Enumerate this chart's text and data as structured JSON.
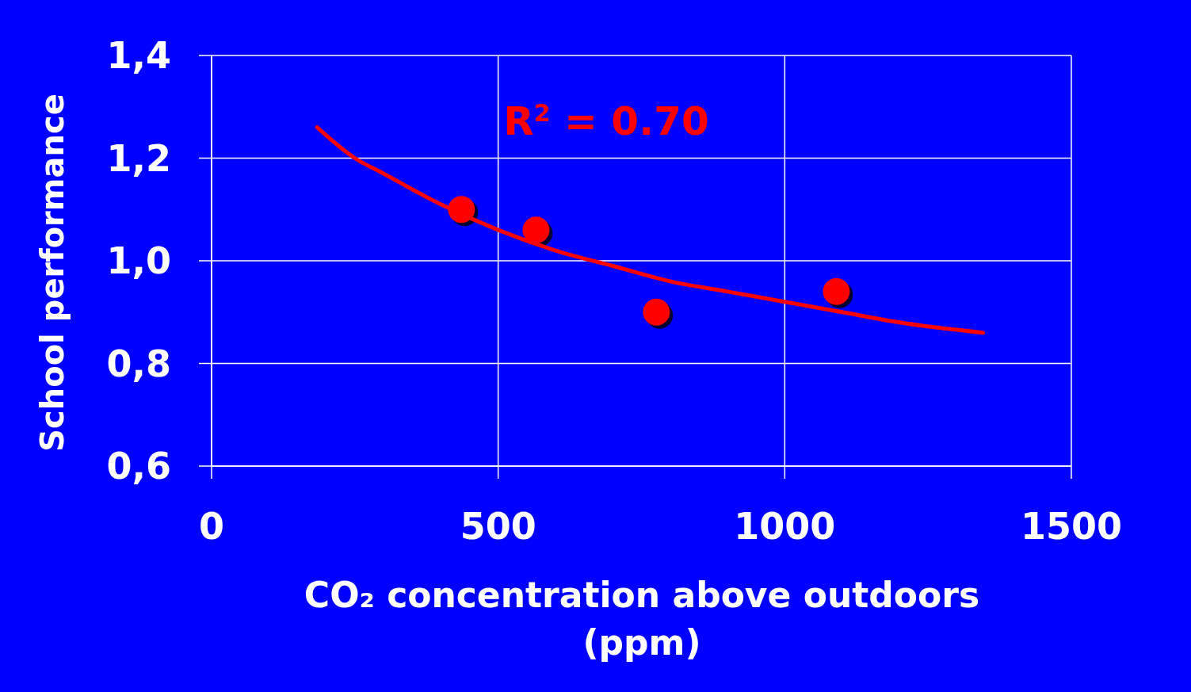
{
  "chart_data": {
    "type": "scatter",
    "xlabel": "CO₂ concentration above outdoors (ppm)",
    "ylabel": "School performance",
    "annotations": [
      "R$^{2}$ = 0.70"
    ],
    "xlim": [
      0,
      1500
    ],
    "ylim": [
      0.6,
      1.4
    ],
    "xticks": [
      0,
      500,
      1000,
      1500
    ],
    "yticks": [
      {
        "value": 0.6,
        "label": "0,6"
      },
      {
        "value": 0.8,
        "label": "0,8"
      },
      {
        "value": 1.0,
        "label": "1,0"
      },
      {
        "value": 1.2,
        "label": "1,2"
      },
      {
        "value": 1.4,
        "label": "1,4"
      }
    ],
    "grid": true,
    "series": [
      {
        "marker": "circle",
        "color": "#ff0000",
        "x": [
          436,
          566,
          776,
          1090
        ],
        "values": [
          1.1,
          1.06,
          0.9,
          0.94
        ]
      },
      {
        "type": "line",
        "color": "#ff0000",
        "x": [
          184,
          250,
          300,
          400,
          500,
          600,
          700,
          800,
          900,
          1000,
          1100,
          1200,
          1346
        ],
        "values": [
          1.26,
          1.2,
          1.17,
          1.11,
          1.06,
          1.02,
          0.99,
          0.96,
          0.94,
          0.92,
          0.9,
          0.88,
          0.86
        ]
      }
    ]
  }
}
